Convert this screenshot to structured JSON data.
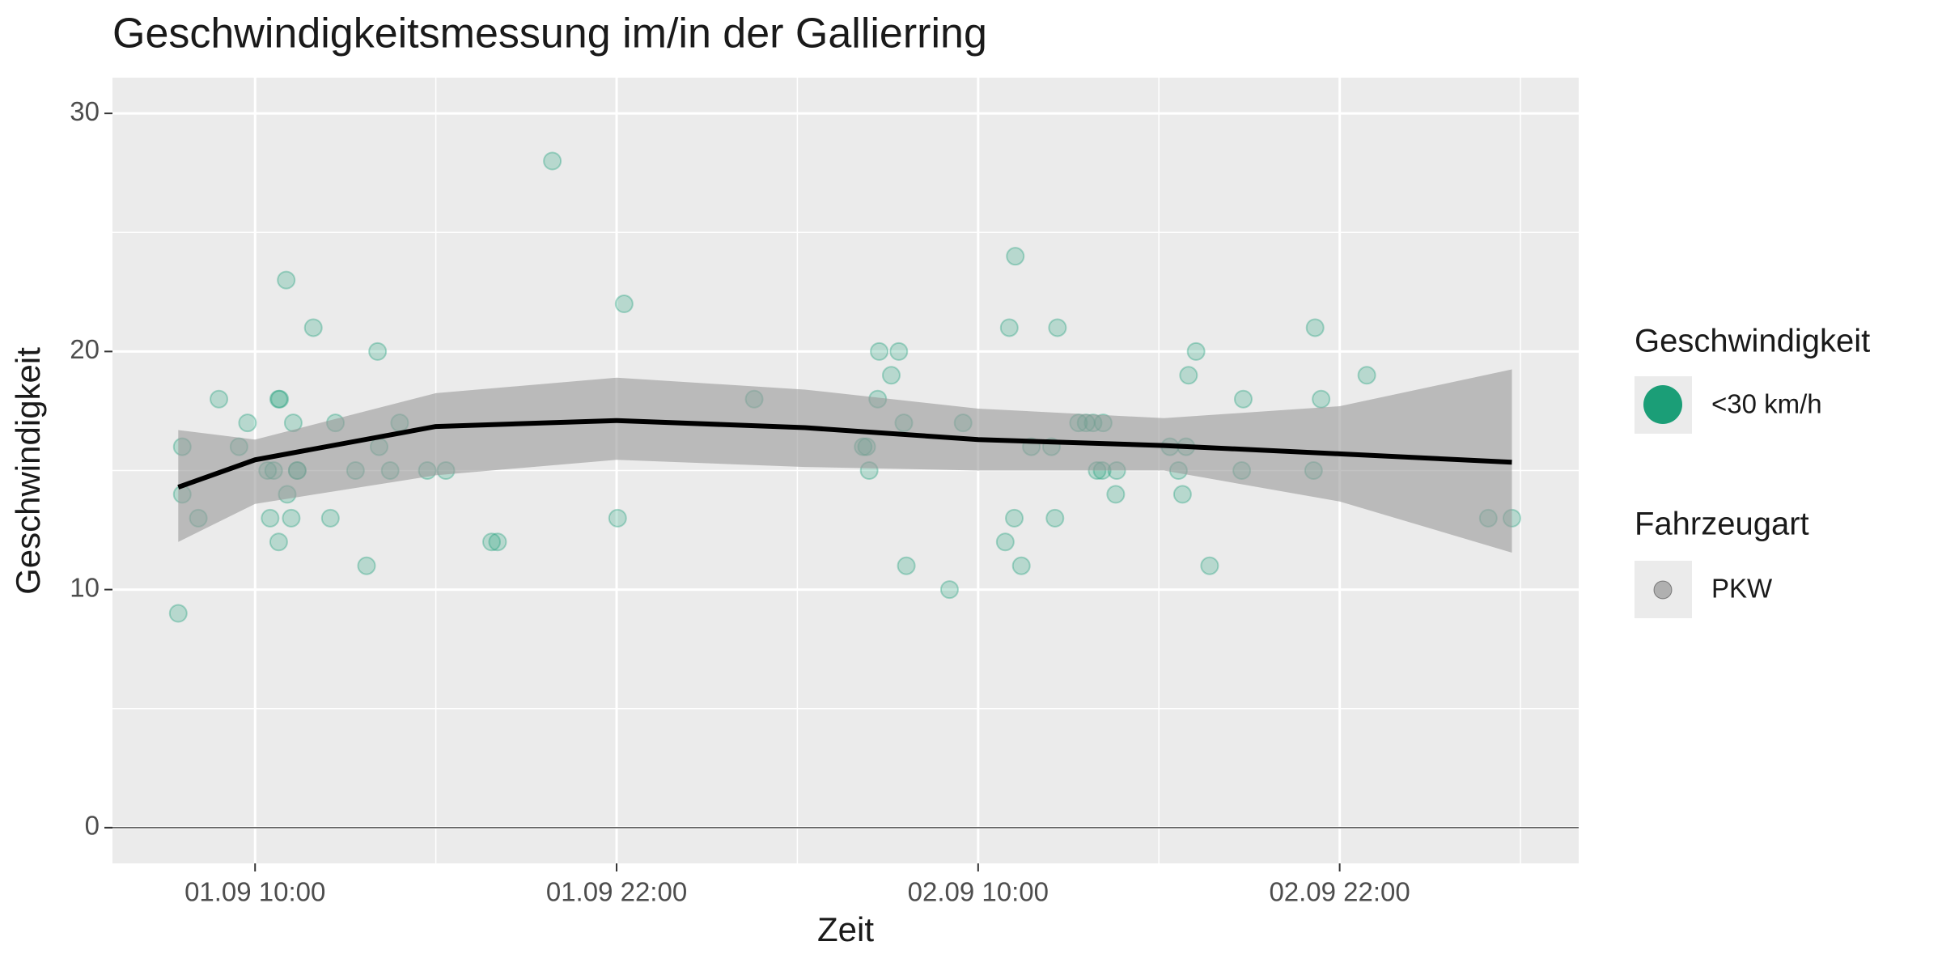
{
  "chart_data": {
    "type": "scatter",
    "title": "Geschwindigkeitsmessung im/in der Gallierring",
    "x_label": "Zeit",
    "y_label": "Geschwindigkeit",
    "x": [
      "01.09 07:27",
      "01.09 07:35",
      "01.09 07:35",
      "01.09 08:07",
      "01.09 08:48",
      "01.09 09:28",
      "01.09 09:45",
      "01.09 10:30",
      "01.09 10:25",
      "01.09 10:37",
      "01.09 10:47",
      "01.09 10:49",
      "01.09 10:47",
      "01.09 11:02",
      "01.09 11:04",
      "01.09 11:12",
      "01.09 11:16",
      "01.09 11:24",
      "01.09 11:24",
      "01.09 11:56",
      "01.09 12:30",
      "01.09 12:40",
      "01.09 13:20",
      "01.09 13:42",
      "01.09 14:04",
      "01.09 14:07",
      "01.09 14:29",
      "01.09 14:48",
      "01.09 15:43",
      "01.09 16:20",
      "01.09 17:51",
      "01.09 18:03",
      "01.09 19:52",
      "01.09 22:02",
      "01.09 22:15",
      "02.09 02:34",
      "02.09 06:11",
      "02.09 06:18",
      "02.09 06:23",
      "02.09 06:40",
      "02.09 06:43",
      "02.09 07:07",
      "02.09 07:22",
      "02.09 07:32",
      "02.09 07:37",
      "02.09 09:03",
      "02.09 09:30",
      "02.09 10:54",
      "02.09 11:02",
      "02.09 11:12",
      "02.09 11:14",
      "02.09 11:26",
      "02.09 11:46",
      "02.09 12:26",
      "02.09 12:33",
      "02.09 12:38",
      "02.09 13:20",
      "02.09 13:35",
      "02.09 13:49",
      "02.09 13:57",
      "02.09 14:07",
      "02.09 14:09",
      "02.09 14:34",
      "02.09 14:36",
      "02.09 16:22",
      "02.09 16:39",
      "02.09 16:47",
      "02.09 16:54",
      "02.09 16:59",
      "02.09 17:14",
      "02.09 17:41",
      "02.09 18:45",
      "02.09 18:48",
      "02.09 21:08",
      "02.09 21:11",
      "02.09 21:23",
      "02.09 22:54",
      "03.09 02:56",
      "03.09 03:43"
    ],
    "series": [
      {
        "name": "<30 km/h",
        "color": "#1b9e77",
        "values": [
          9,
          16,
          14,
          13,
          18,
          16,
          17,
          13,
          15,
          15,
          18,
          18,
          12,
          23,
          14,
          13,
          17,
          15,
          15,
          21,
          13,
          17,
          15,
          11,
          20,
          16,
          15,
          17,
          15,
          15,
          12,
          12,
          28,
          13,
          22,
          18,
          16,
          16,
          15,
          18,
          20,
          19,
          20,
          17,
          11,
          10,
          17,
          12,
          21,
          13,
          24,
          11,
          16,
          16,
          13,
          21,
          17,
          17,
          17,
          15,
          15,
          17,
          14,
          15,
          16,
          15,
          14,
          16,
          19,
          20,
          11,
          15,
          18,
          15,
          21,
          18,
          19,
          13,
          13
        ]
      }
    ],
    "smooth": {
      "color": "#000000",
      "band_color": "#999999",
      "x": [
        "01.09 07:27",
        "01.09 10:00",
        "01.09 16:00",
        "01.09 22:00",
        "02.09 04:15",
        "02.09 10:00",
        "02.09 16:10",
        "02.09 22:00",
        "03.09 03:43"
      ],
      "values": [
        14.3,
        15.45,
        16.85,
        17.1,
        16.8,
        16.3,
        16.05,
        15.7,
        15.35
      ],
      "lower": [
        12.0,
        13.6,
        14.8,
        15.45,
        15.15,
        15.0,
        15.0,
        13.7,
        11.55
      ],
      "upper": [
        16.7,
        16.3,
        18.25,
        18.9,
        18.4,
        17.6,
        17.2,
        17.7,
        19.25
      ]
    },
    "hline": 0,
    "xlim": [
      "01.09 05:16",
      "03.09 05:56"
    ],
    "xticks": [
      "01.09 10:00",
      "01.09 22:00",
      "02.09 10:00",
      "02.09 22:00"
    ],
    "ylim": [
      -1.5,
      31.5
    ],
    "yticks": [
      0,
      10,
      20,
      30
    ],
    "grid": true,
    "legend": "right",
    "legend_title": "Geschwindigkeit",
    "shape_legend": {
      "title": "Fahrzeugart",
      "labels": [
        "PKW"
      ]
    }
  }
}
